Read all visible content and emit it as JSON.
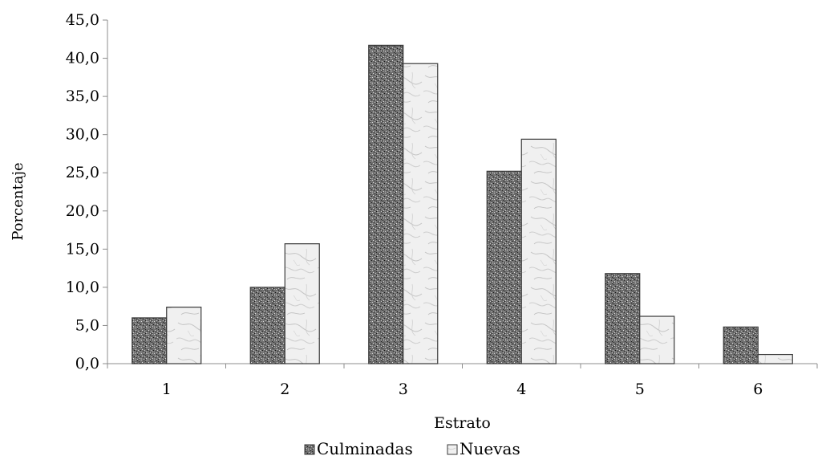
{
  "chart_data": {
    "type": "bar",
    "categories": [
      "1",
      "2",
      "3",
      "4",
      "5",
      "6"
    ],
    "series": [
      {
        "name": "Culminadas",
        "values": [
          6.0,
          10.0,
          41.7,
          25.2,
          11.8,
          4.8
        ],
        "color": "#6b6b6b",
        "pattern": "speckled-dark"
      },
      {
        "name": "Nuevas",
        "values": [
          7.4,
          15.7,
          39.3,
          29.4,
          6.2,
          1.2
        ],
        "color": "#ececec",
        "pattern": "marble-light"
      }
    ],
    "title": "",
    "xlabel": "Estrato",
    "ylabel": "Porcentaje",
    "ylim": [
      0,
      45
    ],
    "yticks": [
      "0,0",
      "5,0",
      "10,0",
      "15,0",
      "20,0",
      "25,0",
      "30,0",
      "35,0",
      "40,0",
      "45,0"
    ],
    "grid": false,
    "legend_position": "bottom"
  }
}
